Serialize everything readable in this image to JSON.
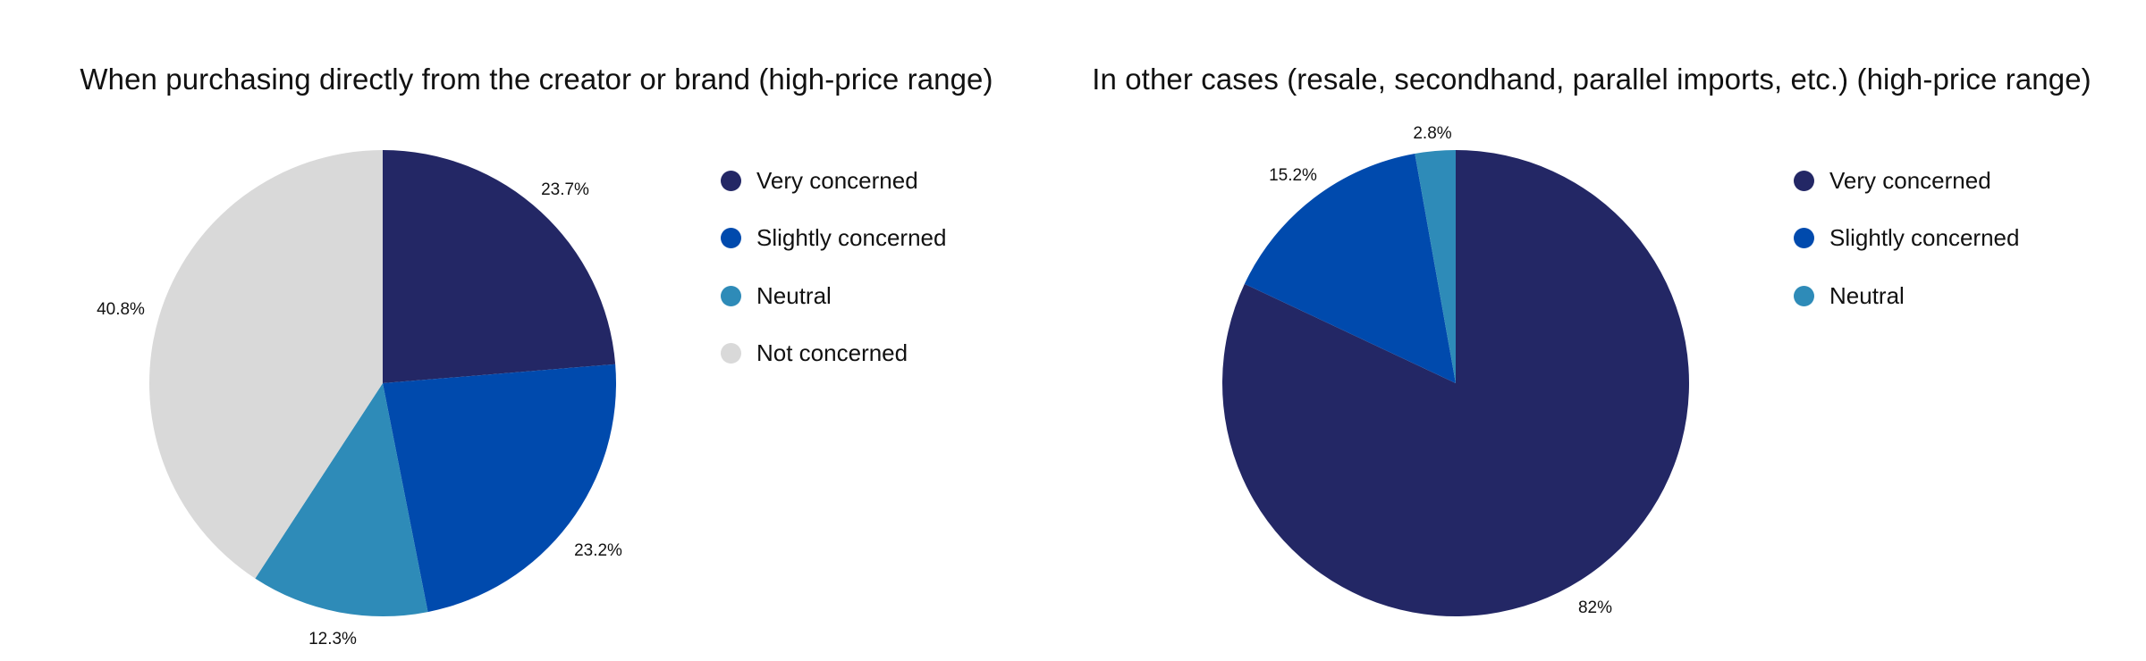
{
  "colors": {
    "very_concerned": "#232765",
    "slightly_concerned": "#004aad",
    "neutral": "#2e8bb8",
    "not_concerned": "#d9d9d9"
  },
  "charts": [
    {
      "title": "When purchasing directly from the creator or brand (high-price range)",
      "legend": [
        {
          "label": "Very concerned",
          "color": "#232765"
        },
        {
          "label": "Slightly concerned",
          "color": "#004aad"
        },
        {
          "label": "Neutral",
          "color": "#2e8bb8"
        },
        {
          "label": "Not concerned",
          "color": "#d9d9d9"
        }
      ],
      "slice_labels": [
        "23.7%",
        "23.2%",
        "12.3%",
        "40.8%"
      ]
    },
    {
      "title": "In other cases (resale, secondhand, parallel imports, etc.) (high-price range)",
      "legend": [
        {
          "label": "Very concerned",
          "color": "#232765"
        },
        {
          "label": "Slightly concerned",
          "color": "#004aad"
        },
        {
          "label": "Neutral",
          "color": "#2e8bb8"
        }
      ],
      "slice_labels": [
        "82%",
        "15.2%",
        "2.8%"
      ]
    }
  ],
  "chart_data": [
    {
      "type": "pie",
      "title": "When purchasing directly from the creator or brand (high-price range)",
      "categories": [
        "Very concerned",
        "Slightly concerned",
        "Neutral",
        "Not concerned"
      ],
      "values": [
        23.7,
        23.2,
        12.3,
        40.8
      ],
      "unit": "%",
      "colors": [
        "#232765",
        "#004aad",
        "#2e8bb8",
        "#d9d9d9"
      ],
      "start_angle": "12 o'clock, clockwise",
      "legend_position": "right"
    },
    {
      "type": "pie",
      "title": "In other cases (resale, secondhand, parallel imports, etc.) (high-price range)",
      "categories": [
        "Very concerned",
        "Slightly concerned",
        "Neutral"
      ],
      "values": [
        82,
        15.2,
        2.8
      ],
      "unit": "%",
      "colors": [
        "#232765",
        "#004aad",
        "#2e8bb8"
      ],
      "start_angle": "12 o'clock, clockwise",
      "legend_position": "right"
    }
  ]
}
